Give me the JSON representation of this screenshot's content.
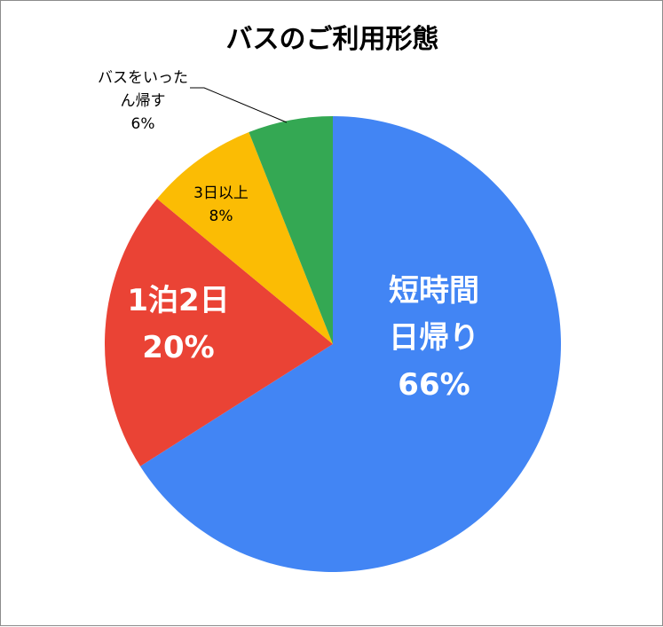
{
  "chart_data": {
    "type": "pie",
    "title": "バスのご利用形態",
    "slices": [
      {
        "label_lines": [
          "短時間",
          "日帰り"
        ],
        "value": 66,
        "value_label": "66%",
        "color": "#4285F4"
      },
      {
        "label_lines": [
          "1泊2日"
        ],
        "value": 20,
        "value_label": "20%",
        "color": "#EA4335"
      },
      {
        "label_lines": [
          "3日以上"
        ],
        "value": 8,
        "value_label": "8%",
        "color": "#FBBC04"
      },
      {
        "label_lines": [
          "バスをいった",
          "ん帰す"
        ],
        "value": 6,
        "value_label": "6%",
        "color": "#34A853"
      }
    ],
    "start": "12 o'clock",
    "direction": "clockwise",
    "legend": "none"
  }
}
